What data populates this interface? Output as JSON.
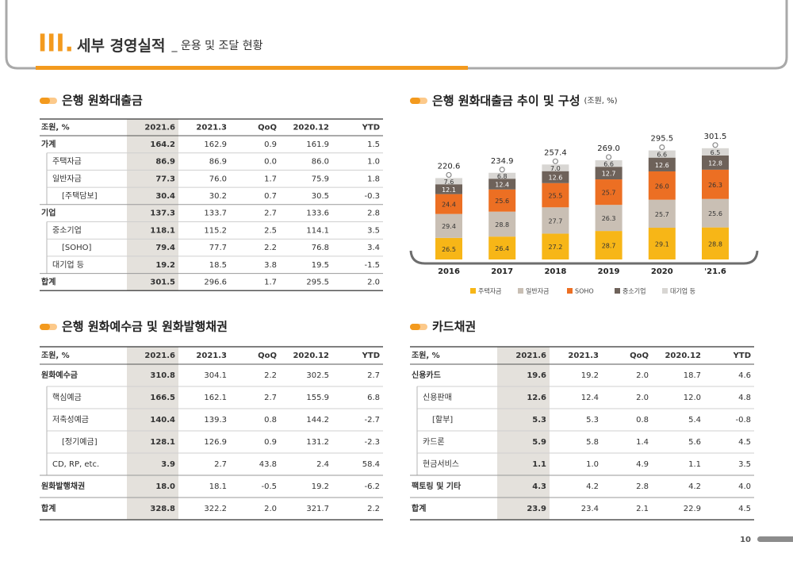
{
  "header": {
    "section_number": "III.",
    "title": "세부 경영실적",
    "subtitle": "_ 운용 및 조달 현황"
  },
  "loans": {
    "heading": "은행 원화대출금",
    "table": {
      "columns": [
        "조원, %",
        "2021.6",
        "2021.3",
        "QoQ",
        "2020.12",
        "YTD"
      ],
      "rows": [
        {
          "cells": [
            "가계",
            "164.2",
            "162.9",
            "0.9",
            "161.9",
            "1.5"
          ],
          "children": [
            {
              "cells": [
                "주택자금",
                "86.9",
                "86.9",
                "0.0",
                "86.0",
                "1.0"
              ]
            },
            {
              "cells": [
                "일반자금",
                "77.3",
                "76.0",
                "1.7",
                "75.9",
                "1.8"
              ],
              "children": [
                {
                  "cells": [
                    "[주택담보]",
                    "30.4",
                    "30.2",
                    "0.7",
                    "30.5",
                    "-0.3"
                  ]
                }
              ]
            }
          ]
        },
        {
          "cells": [
            "기업",
            "137.3",
            "133.7",
            "2.7",
            "133.6",
            "2.8"
          ],
          "children": [
            {
              "cells": [
                "중소기업",
                "118.1",
                "115.2",
                "2.5",
                "114.1",
                "3.5"
              ],
              "children": [
                {
                  "cells": [
                    "[SOHO]",
                    "79.4",
                    "77.7",
                    "2.2",
                    "76.8",
                    "3.4"
                  ]
                }
              ]
            },
            {
              "cells": [
                "대기업 등",
                "19.2",
                "18.5",
                "3.8",
                "19.5",
                "-1.5"
              ]
            }
          ]
        },
        {
          "cells": [
            "합계",
            "301.5",
            "296.6",
            "1.7",
            "295.5",
            "2.0"
          ]
        }
      ]
    }
  },
  "chart_data": {
    "type": "bar",
    "stacked": true,
    "title": "은행 원화대출금 추이 및 구성",
    "subtitle": "(조원, %)",
    "categories": [
      "2016",
      "2017",
      "2018",
      "2019",
      "2020",
      "'21.6"
    ],
    "series": [
      {
        "name": "주택자금",
        "color": "#f7b617",
        "values": [
          26.5,
          26.4,
          27.2,
          28.7,
          29.1,
          28.8
        ],
        "value_labels": [
          "26.5",
          "26.4",
          "27.2",
          "28.7",
          "29.1",
          "28.8"
        ]
      },
      {
        "name": "일반자금",
        "color": "#c9bfb4",
        "values": [
          29.4,
          28.8,
          27.7,
          26.3,
          25.7,
          25.6
        ],
        "value_labels": [
          "29.4",
          "28.8",
          "27.7",
          "26.3",
          "25.7",
          "25.6"
        ]
      },
      {
        "name": "SOHO",
        "color": "#ec6f23",
        "values": [
          24.4,
          25.6,
          25.5,
          25.7,
          26.0,
          26.3
        ],
        "value_labels": [
          "24.4",
          "25.6",
          "25.5",
          "25.7",
          "26.0",
          "26.3"
        ]
      },
      {
        "name": "중소기업",
        "color": "#6e625a",
        "values": [
          12.1,
          12.4,
          12.6,
          12.7,
          12.6,
          12.8
        ],
        "value_labels": [
          "12.1",
          "12.4",
          "12.6",
          "12.7",
          "12.6",
          "12.8"
        ]
      },
      {
        "name": "대기업 등",
        "color": "#d8d6d3",
        "values": [
          7.6,
          6.8,
          7.0,
          6.6,
          6.6,
          6.5
        ],
        "value_labels": [
          "7.6",
          "6.8",
          "7.0",
          "6.6",
          "6.6",
          "6.5"
        ]
      }
    ],
    "totals": {
      "values": [
        220.6,
        234.9,
        257.4,
        269.0,
        295.5,
        301.5
      ],
      "value_labels": [
        "220.6",
        "234.9",
        "257.4",
        "269.0",
        "295.5",
        "301.5"
      ]
    },
    "legend": "bottom"
  },
  "deposits": {
    "heading": "은행 원화예수금 및 원화발행채권",
    "table": {
      "columns": [
        "조원, %",
        "2021.6",
        "2021.3",
        "QoQ",
        "2020.12",
        "YTD"
      ],
      "rows": [
        {
          "cells": [
            "원화예수금",
            "310.8",
            "304.1",
            "2.2",
            "302.5",
            "2.7"
          ],
          "children": [
            {
              "cells": [
                "핵심예금",
                "166.5",
                "162.1",
                "2.7",
                "155.9",
                "6.8"
              ]
            },
            {
              "cells": [
                "저축성예금",
                "140.4",
                "139.3",
                "0.8",
                "144.2",
                "-2.7"
              ],
              "children": [
                {
                  "cells": [
                    "[정기예금]",
                    "128.1",
                    "126.9",
                    "0.9",
                    "131.2",
                    "-2.3"
                  ]
                }
              ]
            },
            {
              "cells": [
                "CD, RP, etc.",
                "3.9",
                "2.7",
                "43.8",
                "2.4",
                "58.4"
              ]
            }
          ]
        },
        {
          "cells": [
            "원화발행채권",
            "18.0",
            "18.1",
            "-0.5",
            "19.2",
            "-6.2"
          ]
        },
        {
          "cells": [
            "합계",
            "328.8",
            "322.2",
            "2.0",
            "321.7",
            "2.2"
          ]
        }
      ]
    }
  },
  "card": {
    "heading": "카드채권",
    "table": {
      "columns": [
        "조원, %",
        "2021.6",
        "2021.3",
        "QoQ",
        "2020.12",
        "YTD"
      ],
      "rows": [
        {
          "cells": [
            "신용카드",
            "19.6",
            "19.2",
            "2.0",
            "18.7",
            "4.6"
          ],
          "children": [
            {
              "cells": [
                "신용판매",
                "12.6",
                "12.4",
                "2.0",
                "12.0",
                "4.8"
              ],
              "children": [
                {
                  "cells": [
                    "[할부]",
                    "5.3",
                    "5.3",
                    "0.8",
                    "5.4",
                    "-0.8"
                  ]
                }
              ]
            },
            {
              "cells": [
                "카드론",
                "5.9",
                "5.8",
                "1.4",
                "5.6",
                "4.5"
              ]
            },
            {
              "cells": [
                "현금서비스",
                "1.1",
                "1.0",
                "4.9",
                "1.1",
                "3.5"
              ]
            }
          ]
        },
        {
          "cells": [
            "팩토링 및 기타",
            "4.3",
            "4.2",
            "2.8",
            "4.2",
            "4.0"
          ]
        },
        {
          "cells": [
            "합계",
            "23.9",
            "23.4",
            "2.1",
            "22.9",
            "4.5"
          ]
        }
      ]
    }
  },
  "page_number": "10"
}
